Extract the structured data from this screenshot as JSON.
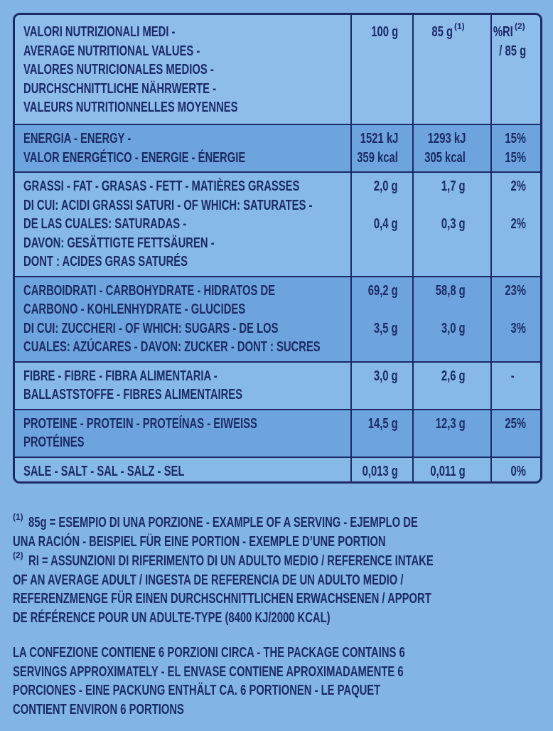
{
  "table": {
    "header": {
      "label": [
        "VALORI NUTRIZIONALI MEDI -",
        "AVERAGE NUTRITIONAL VALUES -",
        "VALORES NUTRICIONALES MEDIOS -",
        "DURCHSCHNITTLICHE NÄHRWERTE -",
        "VALEURS NUTRITIONNELLES MOYENNES"
      ],
      "columns": [
        {
          "text": "100 g"
        },
        {
          "text": "85 g",
          "note": "(1)"
        },
        {
          "text": "%RI",
          "note": "(2)",
          "line2": "/ 85 g"
        }
      ]
    },
    "rows": [
      {
        "label": [
          "ENERGIA - ENERGY -",
          "VALOR ENERGÉTICO - ENERGIE - ÉNERGIE"
        ],
        "values": [
          [
            "1521 kJ",
            "1293 kJ",
            "15%"
          ],
          [
            "359 kcal",
            "305 kcal",
            "15%"
          ]
        ]
      },
      {
        "label": [
          "GRASSI - FAT - GRASAS - FETT - MATIÈRES GRASSES",
          "DI CUI: ACIDI GRASSI SATURI - OF WHICH: SATURATES -",
          "DE LAS CUALES: SATURADAS -",
          "DAVON: GESÄTTIGTE FETTSÄUREN -",
          "DONT : ACIDES GRAS SATURÉS"
        ],
        "values": [
          [
            "2,0 g",
            "1,7 g",
            "2%"
          ],
          null,
          [
            "0,4 g",
            "0,3 g",
            "2%"
          ],
          null,
          null
        ]
      },
      {
        "label": [
          "CARBOIDRATI - CARBOHYDRATE - HIDRATOS DE",
          "CARBONO - KOHLENHYDRATE - GLUCIDES",
          "DI CUI: ZUCCHERI - OF WHICH: SUGARS - DE LOS",
          "CUALES: AZÚCARES - DAVON: ZUCKER - DONT : SUCRES"
        ],
        "values": [
          [
            "69,2 g",
            "58,8 g",
            "23%"
          ],
          null,
          [
            "3,5 g",
            "3,0 g",
            "3%"
          ],
          null
        ]
      },
      {
        "label": [
          "FIBRE - FIBRE - FIBRA ALIMENTARIA -",
          "BALLASTSTOFFE - FIBRES ALIMENTAIRES"
        ],
        "values": [
          [
            "3,0 g",
            "2,6 g",
            "-"
          ],
          null
        ]
      },
      {
        "label": [
          "PROTEINE - PROTEIN - PROTEÍNAS - EIWEISS",
          "PROTÉINES"
        ],
        "values": [
          [
            "14,5 g",
            "12,3 g",
            "25%"
          ],
          null
        ]
      },
      {
        "label": [
          "SALE - SALT - SAL - SALZ - SEL"
        ],
        "values": [
          [
            "0,013 g",
            "0,011 g",
            "0%"
          ]
        ]
      }
    ]
  },
  "notes": [
    {
      "mark": "(1)",
      "lines": [
        "85g = ESEMPIO DI UNA PORZIONE - EXAMPLE OF A SERVING - EJEMPLO DE",
        "UNA RACIÓN - BEISPIEL FÜR EINE PORTION - EXEMPLE D’UNE PORTION"
      ]
    },
    {
      "mark": "(2)",
      "lines": [
        "RI = ASSUNZIONI DI RIFERIMENTO DI UN ADULTO MEDIO / REFERENCE INTAKE",
        "OF AN AVERAGE ADULT / INGESTA DE REFERENCIA DE UN ADULTO MEDIO /",
        "REFERENZMENGE FÜR EINEN DURCHSCHNITTLICHEN ERWACHSENEN / APPORT",
        "DE RÉFÉRENCE POUR UN ADULTE-TYPE (8400 KJ/2000 KCAL)"
      ]
    }
  ],
  "package": [
    "LA CONFEZIONE CONTIENE 6 PORZIONI CIRCA - THE PACKAGE CONTAINS 6",
    "SERVINGS APPROXIMATELY - EL ENVASE CONTIENE APROXIMADAMENTE 6",
    "PORCIONES - EINE PACKUNG ENTHÄLT CA. 6 PORTIONEN - LE PAQUET",
    "CONTIENT ENVIRON 6 PORTIONS"
  ]
}
